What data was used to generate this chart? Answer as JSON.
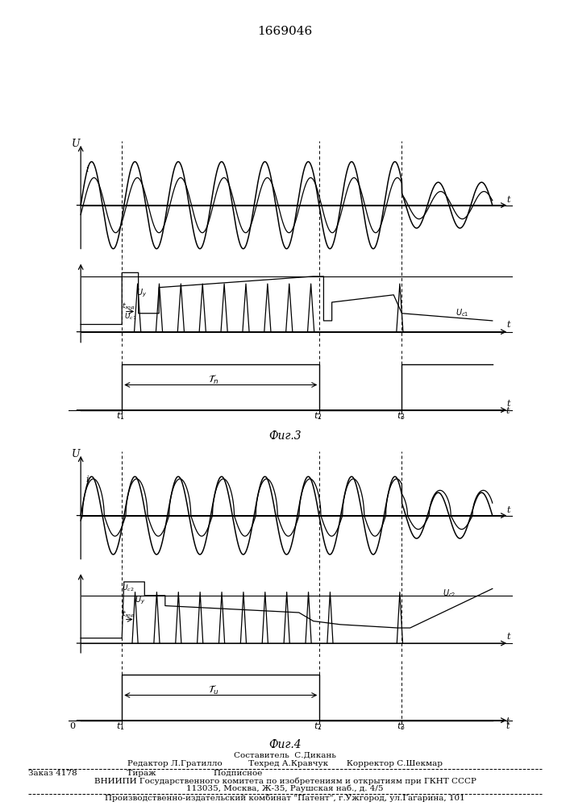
{
  "title": "1669046",
  "fig3_label": "Фиг.3",
  "fig4_label": "Фиг.4",
  "footer_line0": "Составитель  С.Дикань",
  "footer_line1": "Редактор Л.Гратилло          Техред А.Кравчук       Корректор С.Шекмар",
  "footer_line2": "Заказ 4178                   Тираж                      Подписное",
  "footer_line3": "ВНИИПИ Государственного комитета по изобретениям и открытиям при ГКНТ СССР",
  "footer_line4": "113035, Москва, Ж-35, Раушская наб., д. 4/5",
  "footer_line5": "Производственно-издательский комбинат \"Патент\", г.Ужгород, ул.Гагарина, 101"
}
